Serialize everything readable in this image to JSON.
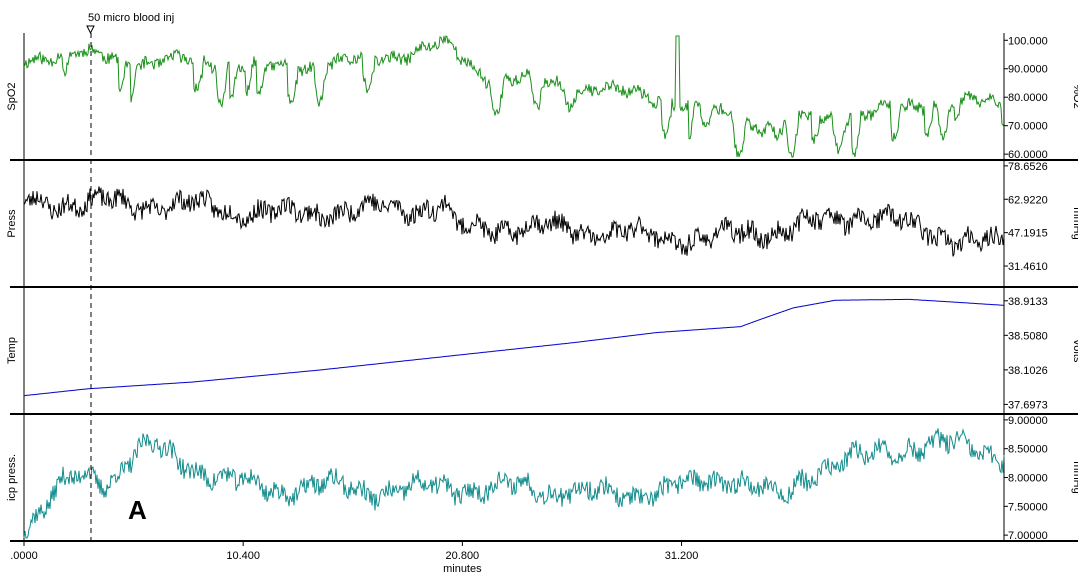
{
  "chart_data": {
    "type": "line",
    "annotation": {
      "marker_text": "50 micro blood inj",
      "marker_x": 3.2,
      "panel_letter": "A"
    },
    "xaxis": {
      "label": "minutes",
      "ticks": [
        ".0000",
        "10.400",
        "20.800",
        "31.200"
      ],
      "tick_values": [
        0,
        10.4,
        20.8,
        31.2
      ],
      "range": [
        0,
        46.5
      ]
    },
    "panels": [
      {
        "name": "SpO2",
        "unit": "%O2",
        "color": "#1a8f1a",
        "ylim": [
          59,
          101.5
        ],
        "ticks": [
          {
            "v": 100,
            "t": "100.000"
          },
          {
            "v": 90,
            "t": "90.0000"
          },
          {
            "v": 80,
            "t": "80.0000"
          },
          {
            "v": 70,
            "t": "70.0000"
          },
          {
            "v": 60,
            "t": "60.0000"
          }
        ],
        "series": {
          "x": [
            0,
            2,
            4,
            6,
            8,
            10,
            12,
            14,
            16,
            18,
            20,
            21,
            22,
            24,
            26,
            28,
            30,
            32,
            33,
            34,
            35,
            36,
            38,
            40,
            42,
            44,
            46.5
          ],
          "y": [
            93,
            96,
            94,
            92,
            93,
            91,
            90,
            91,
            93,
            95,
            99,
            92,
            87,
            86,
            84,
            82,
            80,
            76,
            74,
            72,
            70,
            72,
            73,
            74,
            77,
            78,
            78
          ]
        },
        "noise": 3.0,
        "seed": 11,
        "dips": true,
        "spike": {
          "x": 31.0,
          "y": 101.5
        }
      },
      {
        "name": "Press",
        "unit": "mmHg",
        "color": "#000000",
        "ylim": [
          23,
          80
        ],
        "ticks": [
          {
            "v": 78.6526,
            "t": "78.6526"
          },
          {
            "v": 62.922,
            "t": "62.9220"
          },
          {
            "v": 47.1915,
            "t": "47.1915"
          },
          {
            "v": 31.461,
            "t": "31.4610"
          }
        ],
        "series": {
          "x": [
            0,
            4,
            8,
            12,
            16,
            20,
            20.5,
            24,
            28,
            32,
            36,
            40,
            42,
            44,
            46.5
          ],
          "y": [
            62,
            61,
            60,
            56,
            58,
            60,
            49,
            50,
            47,
            44,
            49,
            56,
            50,
            45,
            41
          ]
        },
        "noise": 6.5,
        "seed": 23,
        "dips": false
      },
      {
        "name": "Temp",
        "unit": "Volts",
        "color": "#0000cc",
        "ylim": [
          37.62,
          39.04
        ],
        "ticks": [
          {
            "v": 38.9133,
            "t": "38.9133"
          },
          {
            "v": 38.508,
            "t": "38.5080"
          },
          {
            "v": 38.1026,
            "t": "38.1026"
          },
          {
            "v": 37.6973,
            "t": "37.6973"
          }
        ],
        "series": {
          "x": [
            0,
            3,
            8,
            14,
            20,
            26,
            30,
            34,
            35,
            36.5,
            38.5,
            42,
            44,
            46.5
          ],
          "y": [
            37.8,
            37.88,
            37.96,
            38.1,
            38.26,
            38.42,
            38.54,
            38.61,
            38.7,
            38.83,
            38.92,
            38.93,
            38.9,
            38.86
          ]
        },
        "noise": 0.0,
        "seed": 5,
        "dips": false
      },
      {
        "name": "icp press.",
        "unit": "mmHg",
        "color": "#138c8c",
        "ylim": [
          6.95,
          9.05
        ],
        "ticks": [
          {
            "v": 9,
            "t": "9.00000"
          },
          {
            "v": 8.5,
            "t": "8.50000"
          },
          {
            "v": 8,
            "t": "8.00000"
          },
          {
            "v": 7.5,
            "t": "7.50000"
          },
          {
            "v": 7,
            "t": "7.00000"
          }
        ],
        "series": {
          "x": [
            0,
            1,
            2,
            3,
            4,
            5,
            6,
            8,
            10,
            12,
            14,
            16,
            18,
            20,
            22,
            24,
            26,
            28,
            30,
            32,
            34,
            36,
            37,
            38,
            40,
            42,
            44,
            46.5
          ],
          "y": [
            7.15,
            7.5,
            7.9,
            8.05,
            7.95,
            8.3,
            8.55,
            8.2,
            7.9,
            7.8,
            7.85,
            7.8,
            7.75,
            7.85,
            7.8,
            7.85,
            7.75,
            7.7,
            7.75,
            7.9,
            8.0,
            7.6,
            8.0,
            8.2,
            8.35,
            8.55,
            8.55,
            8.4
          ]
        },
        "noise": 0.24,
        "seed": 37,
        "dips": false
      }
    ]
  }
}
